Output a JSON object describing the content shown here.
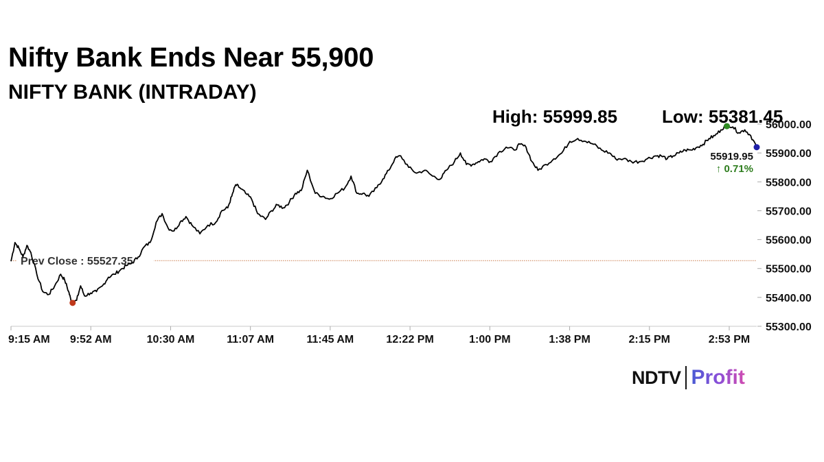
{
  "header": {
    "title": "Nifty Bank Ends Near 55,900",
    "subtitle": "NIFTY BANK (INTRADAY)"
  },
  "stats": {
    "high_label": "High: 55999.85",
    "low_label": "Low: 55381.45"
  },
  "logo": {
    "left": "NDTV",
    "right": "Profit"
  },
  "chart_data": {
    "type": "line",
    "series": [
      {
        "x": [
          "9:15",
          "9:17",
          "9:19",
          "9:21",
          "9:23",
          "9:25",
          "9:28",
          "9:31",
          "9:34",
          "9:37",
          "9:40",
          "9:42",
          "9:44",
          "9:45",
          "9:46",
          "9:48",
          "9:50",
          "9:52",
          "9:55",
          "9:58",
          "10:01",
          "10:04",
          "10:07",
          "10:10",
          "10:13",
          "10:16",
          "10:19",
          "10:22",
          "10:25",
          "10:28",
          "10:31",
          "10:34",
          "10:37",
          "10:40",
          "10:43",
          "10:46",
          "10:50",
          "10:54",
          "10:58",
          "11:01",
          "11:04",
          "11:06",
          "11:08",
          "11:10",
          "11:13",
          "11:16",
          "11:19",
          "11:23",
          "11:26",
          "11:29",
          "11:32",
          "11:35",
          "11:38",
          "11:41",
          "11:44",
          "11:48",
          "11:52",
          "11:55",
          "11:59",
          "12:03",
          "12:06",
          "12:09",
          "12:12",
          "12:15",
          "12:19",
          "12:22",
          "12:25",
          "12:28",
          "12:31",
          "12:35",
          "12:39",
          "12:43",
          "12:47",
          "12:51",
          "12:54",
          "12:58",
          "13:01",
          "13:04",
          "13:07",
          "13:10",
          "13:13",
          "13:16",
          "13:20",
          "13:24",
          "13:28",
          "13:31",
          "13:34",
          "13:37",
          "13:40",
          "13:44",
          "13:48",
          "13:52",
          "13:56",
          "14:00",
          "14:04",
          "14:08",
          "14:12",
          "14:16",
          "14:19",
          "14:23",
          "14:27",
          "14:31",
          "14:35",
          "14:39",
          "14:42",
          "14:45",
          "14:48",
          "14:51",
          "14:54",
          "14:57",
          "15:00",
          "15:03",
          "15:06",
          "15:09",
          "15:12",
          "15:15",
          "15:18",
          "15:21",
          "15:24",
          "15:27",
          "15:30"
        ],
        "values": [
          55525,
          55590,
          55570,
          55540,
          55580,
          55555,
          55480,
          55420,
          55410,
          55440,
          55480,
          55460,
          55420,
          55395,
          55381,
          55390,
          55440,
          55405,
          55415,
          55420,
          55440,
          55470,
          55480,
          55495,
          55510,
          55520,
          55540,
          55575,
          55590,
          55660,
          55690,
          55640,
          55630,
          55660,
          55680,
          55650,
          55620,
          55650,
          55660,
          55700,
          55710,
          55750,
          55790,
          55780,
          55760,
          55740,
          55690,
          55670,
          55700,
          55720,
          55710,
          55730,
          55760,
          55770,
          55840,
          55760,
          55750,
          55740,
          55760,
          55780,
          55820,
          55760,
          55760,
          55750,
          55780,
          55810,
          55840,
          55880,
          55890,
          55850,
          55830,
          55840,
          55820,
          55810,
          55840,
          55870,
          55900,
          55860,
          55860,
          55870,
          55880,
          55870,
          55900,
          55920,
          55910,
          55930,
          55920,
          55870,
          55840,
          55860,
          55880,
          55900,
          55940,
          55950,
          55940,
          55930,
          55910,
          55900,
          55880,
          55880,
          55870,
          55870,
          55880,
          55890,
          55890,
          55880,
          55890,
          55900,
          55910,
          55910,
          55920,
          55930,
          55950,
          55960,
          55980,
          55999.85,
          55990,
          55970,
          55980,
          55960,
          55920
        ]
      }
    ],
    "ylim": [
      55300,
      56000
    ],
    "y_ticks": [
      "55300.00",
      "55400.00",
      "55500.00",
      "55600.00",
      "55700.00",
      "55800.00",
      "55900.00",
      "56000.00"
    ],
    "x_ticks": [
      "9:15 AM",
      "9:52 AM",
      "10:30 AM",
      "11:07 AM",
      "11:45 AM",
      "12:22 PM",
      "1:00 PM",
      "1:38 PM",
      "2:15 PM",
      "2:53 PM"
    ],
    "prev_close": {
      "value": 55527.35,
      "label": "Prev Close : 55527.35"
    },
    "last": {
      "value_label": "55919.95",
      "change_label": "↑ 0.71%"
    },
    "markers": {
      "low_color": "#c0391b",
      "high_color": "#2e8b22",
      "last_color": "#1f1fa8"
    },
    "colors": {
      "line": "#000000",
      "prev_close": "#c97a4a",
      "change": "#2e7d1e",
      "axis": "#aaaaaa"
    },
    "grid": false
  }
}
